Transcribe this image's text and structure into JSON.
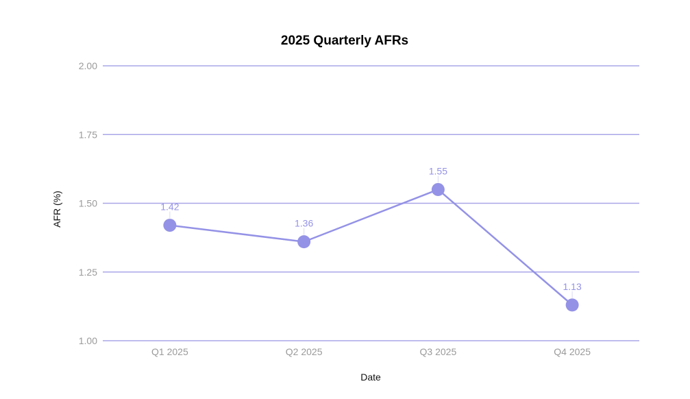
{
  "chart_data": {
    "type": "line",
    "title": "2025 Quarterly AFRs",
    "xlabel": "Date",
    "ylabel": "AFR (%)",
    "categories": [
      "Q1 2025",
      "Q2 2025",
      "Q3 2025",
      "Q4 2025"
    ],
    "series": [
      {
        "values": [
          1.42,
          1.36,
          1.55,
          1.13
        ]
      }
    ],
    "ylim": [
      1.0,
      2.0
    ],
    "yticks": [
      "1.00",
      "1.25",
      "1.50",
      "1.75",
      "2.00"
    ],
    "data_labels": [
      "1.42",
      "1.36",
      "1.55",
      "1.13"
    ],
    "grid": true,
    "legend": "none"
  },
  "colors": {
    "series": "#9492e6",
    "gridline": "#a9a6e8",
    "tick_text": "#9a9a9a",
    "axis_title_text": "#111111",
    "title_text": "#000000"
  }
}
